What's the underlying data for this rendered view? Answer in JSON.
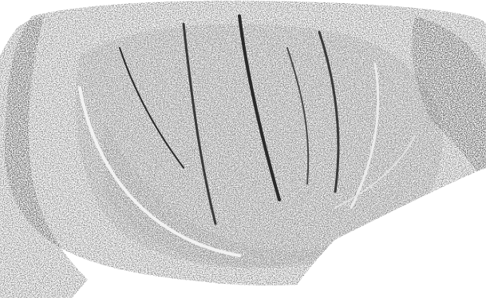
{
  "image": {
    "subject": "lettuce-head-engraving",
    "style": "monochrome halftone engraving",
    "palette": {
      "paper": "#ffffff",
      "ink": "#1c1c1c",
      "mid": "#6a6a6a",
      "light": "#bcbcbc"
    }
  }
}
